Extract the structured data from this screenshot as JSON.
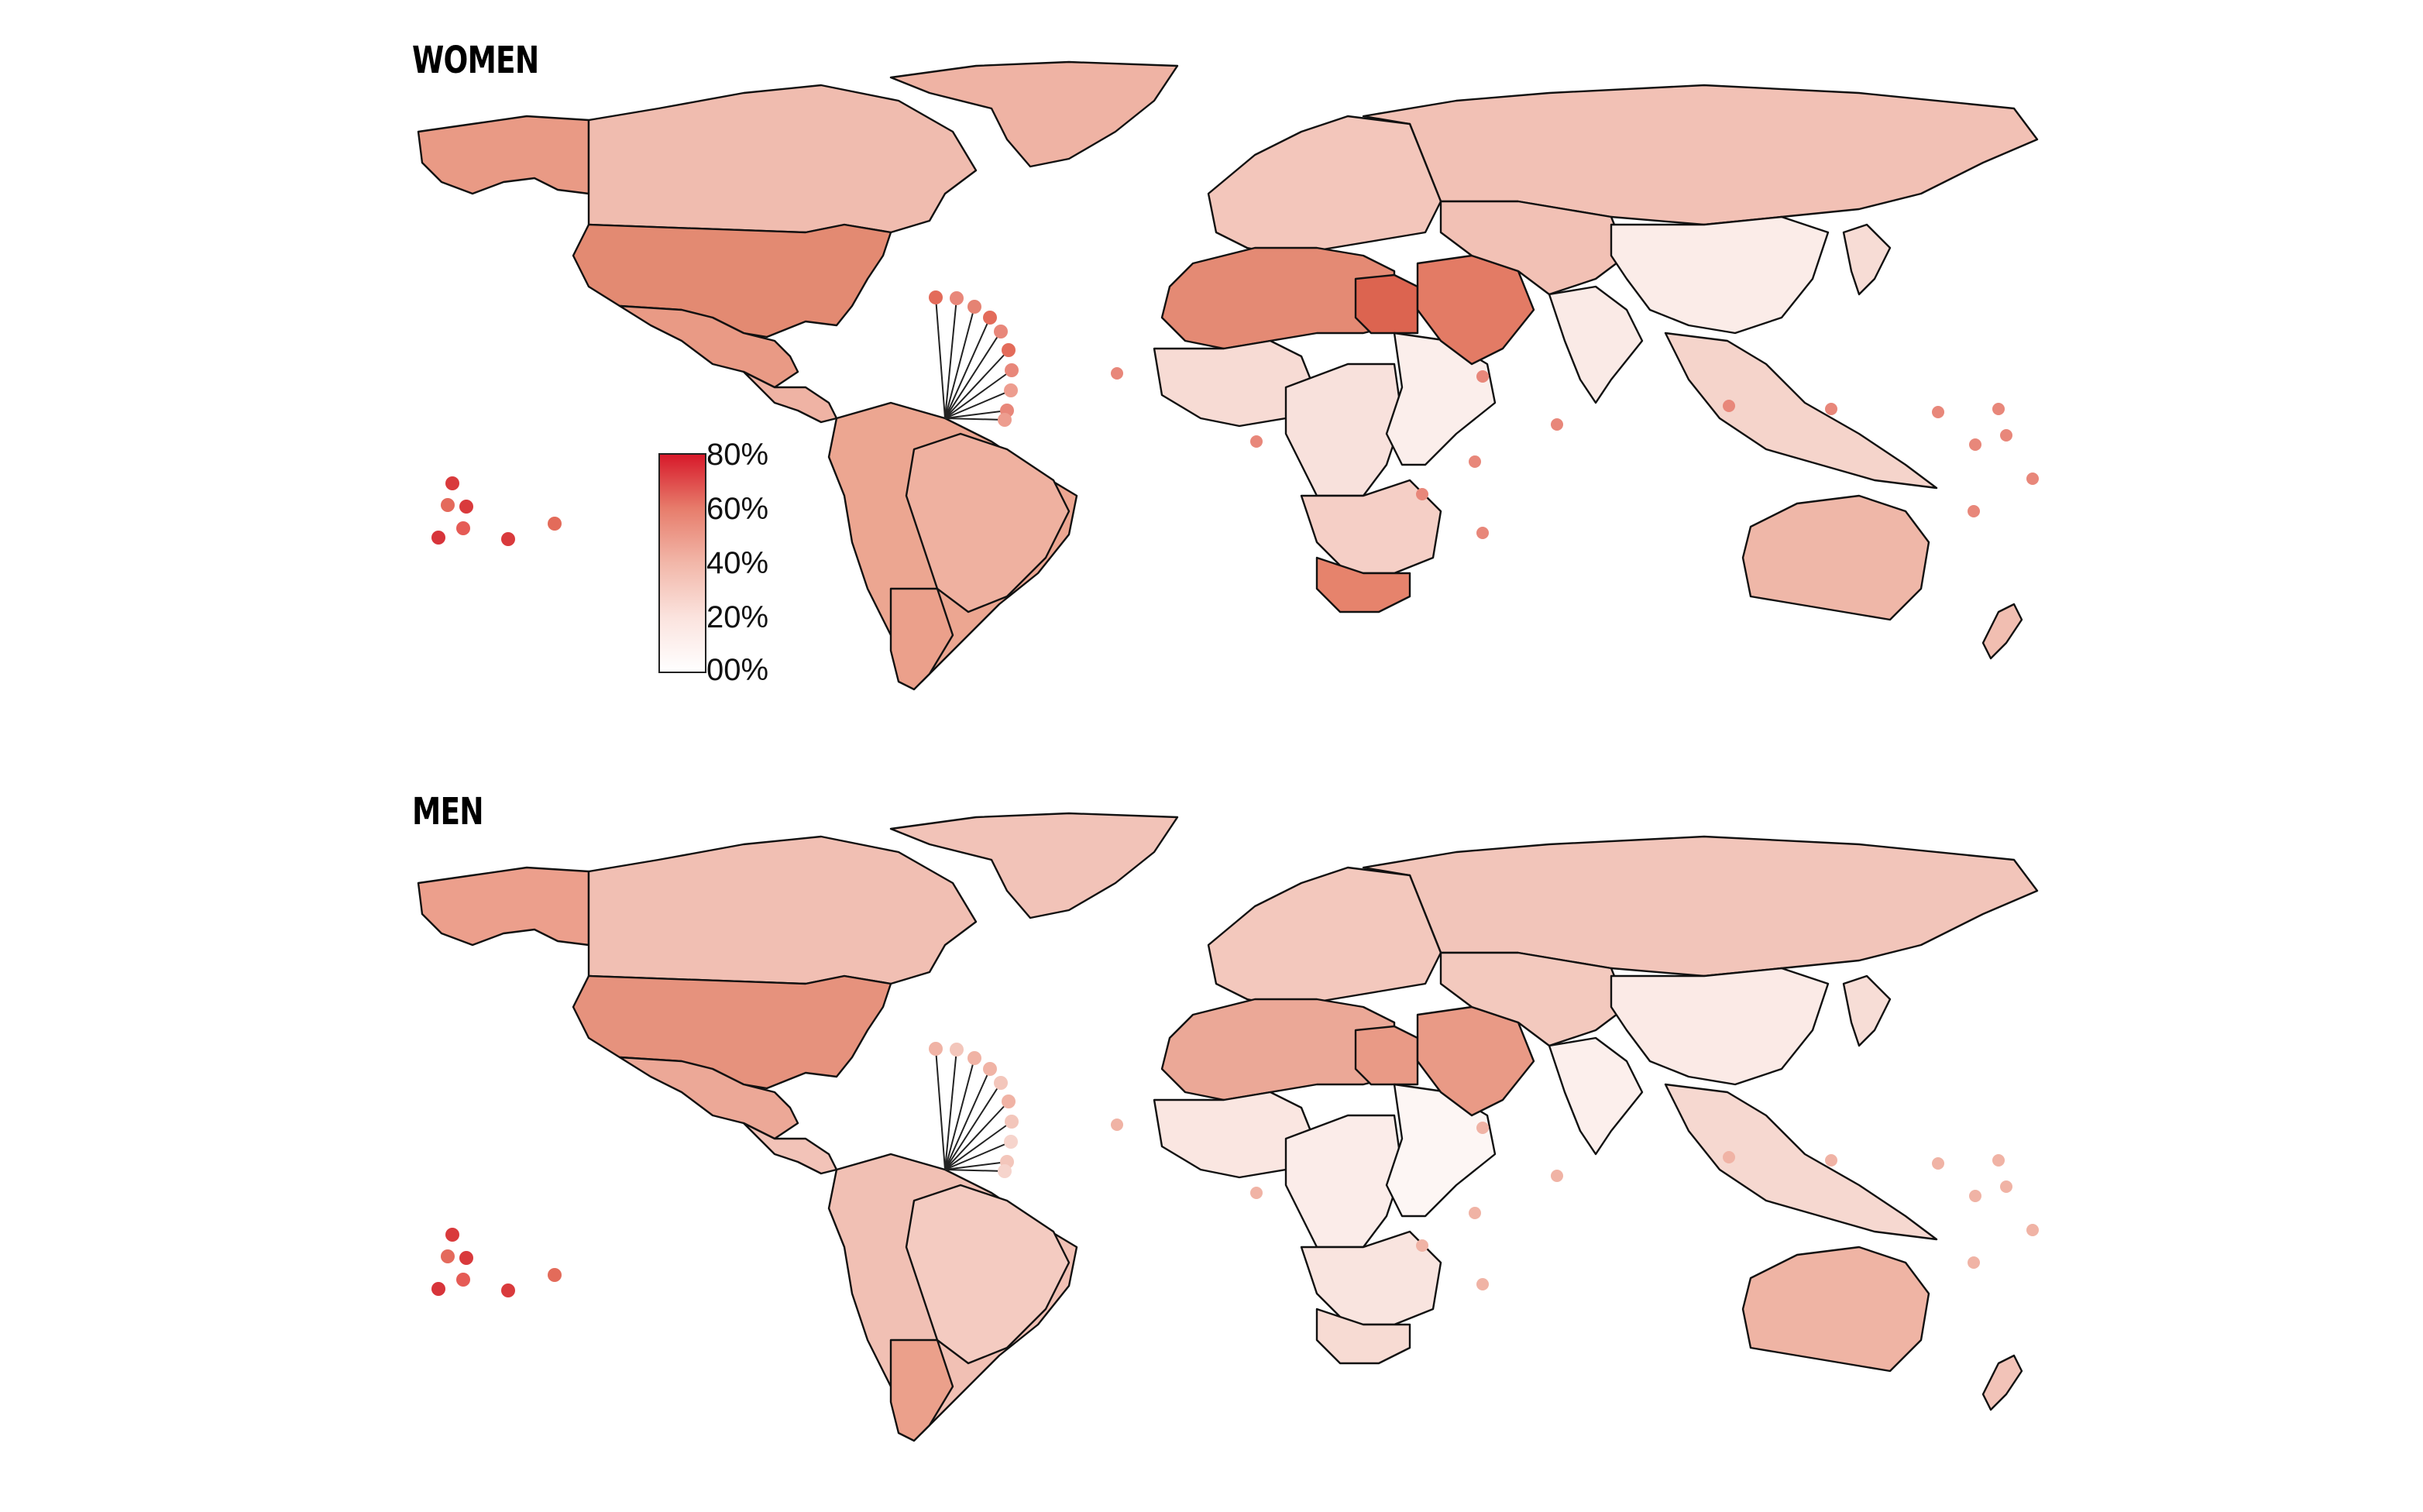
{
  "panels": [
    {
      "title": "WOMEN",
      "colors": {
        "north_america": "#e99a85",
        "canada": "#f0bcaf",
        "alaska": "#e99a85",
        "greenland": "#efb3a4",
        "usa": "#e38a72",
        "mexico": "#e99a85",
        "central_america": "#efb3a4",
        "south_america": "#eca691",
        "brazil": "#efb1a0",
        "argentina": "#eba08b",
        "europe": "#f3c6bb",
        "russia": "#f2c1b5",
        "north_africa": "#e48a74",
        "egypt": "#dc6450",
        "west_africa": "#f7dbd4",
        "central_africa": "#f8e1dc",
        "east_africa": "#fbeeeb",
        "southern_africa": "#f5cfc6",
        "south_africa": "#e6836c",
        "middle_east": "#e37b65",
        "central_asia": "#f2c1b5",
        "india": "#faeae6",
        "china": "#fbece8",
        "southeast_asia": "#f5d4cb",
        "japan": "#f7dcd5",
        "australia": "#efb7a8",
        "new_zealand": "#f1beb1"
      },
      "islands": [
        "#e36b5a",
        "#e8877a",
        "#e58373",
        "#e36b5a",
        "#e8877a",
        "#e36b5a",
        "#e8877a",
        "#ed9d8f",
        "#e8877a",
        "#ed9d8f"
      ],
      "pacific_dots": [
        "#d93a3c",
        "#e46a5c",
        "#d93a3c",
        "#e55b55",
        "#d7343a",
        "#d93a3c",
        "#e36b5a"
      ]
    },
    {
      "title": "MEN",
      "colors": {
        "north_america": "#ec9f8c",
        "canada": "#f1bfb3",
        "alaska": "#ec9f8c",
        "greenland": "#f2c3b8",
        "usa": "#e6927d",
        "mexico": "#eca897",
        "central_america": "#f2c3b8",
        "south_america": "#f1c0b4",
        "brazil": "#f4cbc1",
        "argentina": "#eba08b",
        "europe": "#f3c8bd",
        "russia": "#f2c5ba",
        "north_africa": "#eba897",
        "egypt": "#e99a86",
        "west_africa": "#fae6e1",
        "central_africa": "#fbece9",
        "east_africa": "#fdf6f4",
        "southern_africa": "#f9e4df",
        "south_africa": "#f7dbd3",
        "middle_east": "#e99a86",
        "central_asia": "#f3c9be",
        "india": "#fcefec",
        "china": "#fbeae6",
        "southeast_asia": "#f6d8d0",
        "japan": "#f7ddd6",
        "australia": "#efb4a4",
        "new_zealand": "#f2c3b8"
      },
      "islands": [
        "#f0b3a5",
        "#f3c6bb",
        "#f0b3a5",
        "#f0b3a5",
        "#f3c6bb",
        "#f0b3a5",
        "#f3c6bb",
        "#f6d4cc",
        "#f3c6bb",
        "#f6d4cc"
      ],
      "pacific_dots": [
        "#d93a3c",
        "#e46a5c",
        "#d93a3c",
        "#e55b55",
        "#d7343a",
        "#d93a3c",
        "#e36b5a"
      ]
    }
  ],
  "legend": {
    "ticks": [
      "80%",
      "60%",
      "40%",
      "20%",
      "00%"
    ]
  }
}
